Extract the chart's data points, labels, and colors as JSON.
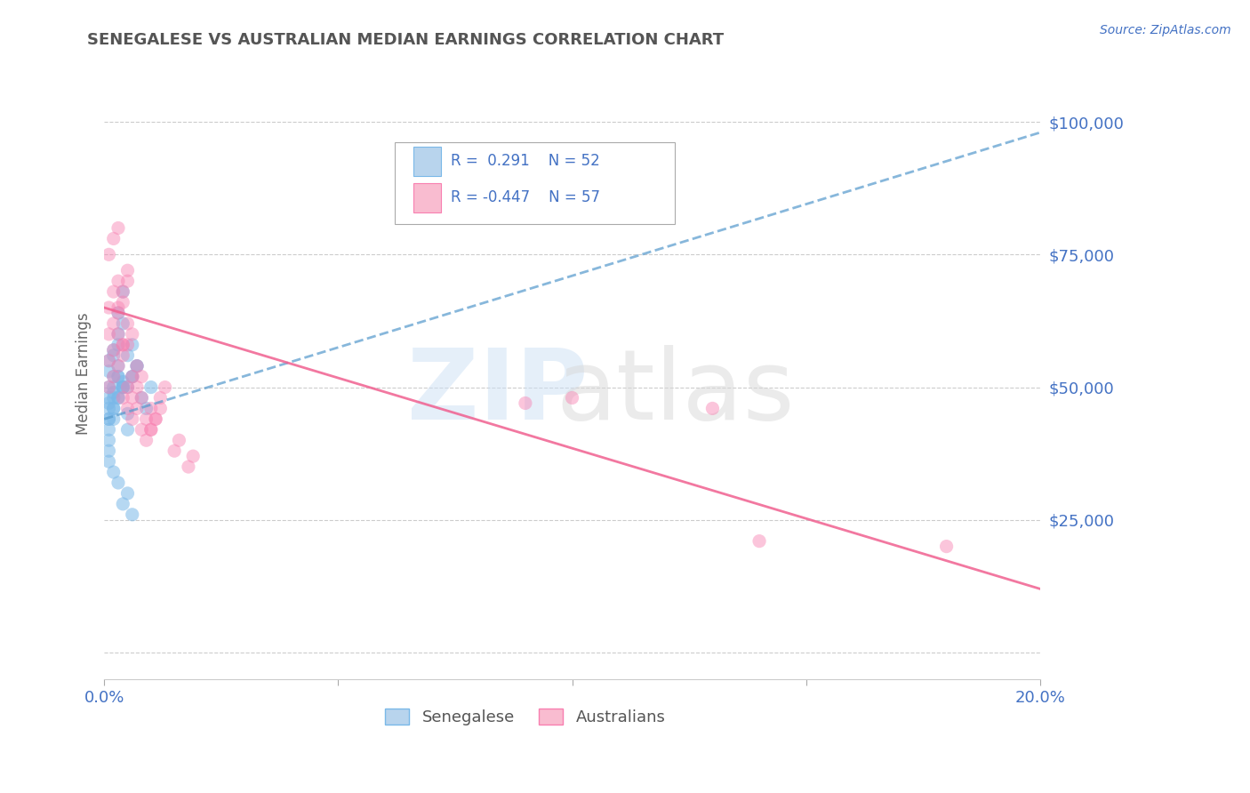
{
  "title": "SENEGALESE VS AUSTRALIAN MEDIAN EARNINGS CORRELATION CHART",
  "source": "Source: ZipAtlas.com",
  "ylabel": "Median Earnings",
  "xlim": [
    0.0,
    0.2
  ],
  "ylim": [
    -5000,
    110000
  ],
  "yticks": [
    0,
    25000,
    50000,
    75000,
    100000
  ],
  "ytick_labels": [
    "",
    "$25,000",
    "$50,000",
    "$75,000",
    "$100,000"
  ],
  "xticks": [
    0.0,
    0.05,
    0.1,
    0.15,
    0.2
  ],
  "xtick_labels": [
    "0.0%",
    "",
    "",
    "",
    "20.0%"
  ],
  "legend_label1": "Senegalese",
  "legend_label2": "Australians",
  "blue_color": "#7ab8e8",
  "blue_fill": "#b8d4ed",
  "pink_color": "#f87fb0",
  "pink_fill": "#f9bcd0",
  "axis_color": "#4472c4",
  "title_color": "#555555",
  "blue_scatter_x": [
    0.001,
    0.002,
    0.003,
    0.004,
    0.005,
    0.006,
    0.001,
    0.002,
    0.003,
    0.004,
    0.005,
    0.001,
    0.002,
    0.003,
    0.004,
    0.001,
    0.002,
    0.003,
    0.004,
    0.005,
    0.001,
    0.002,
    0.003,
    0.001,
    0.002,
    0.003,
    0.004,
    0.001,
    0.002,
    0.003,
    0.001,
    0.002,
    0.001,
    0.001,
    0.002,
    0.001,
    0.005,
    0.006,
    0.007,
    0.008,
    0.009,
    0.01,
    0.003,
    0.004,
    0.006,
    0.007,
    0.001,
    0.002,
    0.003,
    0.004,
    0.005,
    0.006
  ],
  "blue_scatter_y": [
    50000,
    52000,
    54000,
    51000,
    56000,
    58000,
    47000,
    49000,
    48000,
    50000,
    45000,
    46000,
    48000,
    52000,
    50000,
    44000,
    46000,
    48000,
    50000,
    42000,
    55000,
    57000,
    60000,
    53000,
    56000,
    58000,
    62000,
    48000,
    50000,
    52000,
    44000,
    46000,
    40000,
    42000,
    44000,
    38000,
    50000,
    52000,
    54000,
    48000,
    46000,
    50000,
    64000,
    68000,
    52000,
    54000,
    36000,
    34000,
    32000,
    28000,
    30000,
    26000
  ],
  "pink_scatter_x": [
    0.001,
    0.002,
    0.003,
    0.004,
    0.005,
    0.001,
    0.002,
    0.003,
    0.004,
    0.001,
    0.002,
    0.003,
    0.001,
    0.002,
    0.003,
    0.004,
    0.005,
    0.001,
    0.002,
    0.003,
    0.004,
    0.005,
    0.006,
    0.003,
    0.004,
    0.005,
    0.004,
    0.005,
    0.006,
    0.007,
    0.005,
    0.006,
    0.007,
    0.008,
    0.006,
    0.007,
    0.008,
    0.008,
    0.009,
    0.01,
    0.009,
    0.01,
    0.011,
    0.01,
    0.011,
    0.012,
    0.012,
    0.013,
    0.015,
    0.016,
    0.018,
    0.019,
    0.14,
    0.18,
    0.13,
    0.09,
    0.1
  ],
  "pink_scatter_y": [
    65000,
    68000,
    70000,
    66000,
    72000,
    60000,
    62000,
    64000,
    58000,
    75000,
    78000,
    80000,
    55000,
    57000,
    60000,
    58000,
    62000,
    50000,
    52000,
    54000,
    56000,
    58000,
    60000,
    65000,
    68000,
    70000,
    48000,
    50000,
    52000,
    54000,
    46000,
    48000,
    50000,
    52000,
    44000,
    46000,
    48000,
    42000,
    44000,
    46000,
    40000,
    42000,
    44000,
    42000,
    44000,
    46000,
    48000,
    50000,
    38000,
    40000,
    35000,
    37000,
    21000,
    20000,
    46000,
    47000,
    48000
  ],
  "blue_trend_x": [
    0.0,
    0.2
  ],
  "blue_trend_y": [
    44000,
    98000
  ],
  "pink_trend_x": [
    0.0,
    0.2
  ],
  "pink_trend_y": [
    65000,
    12000
  ]
}
